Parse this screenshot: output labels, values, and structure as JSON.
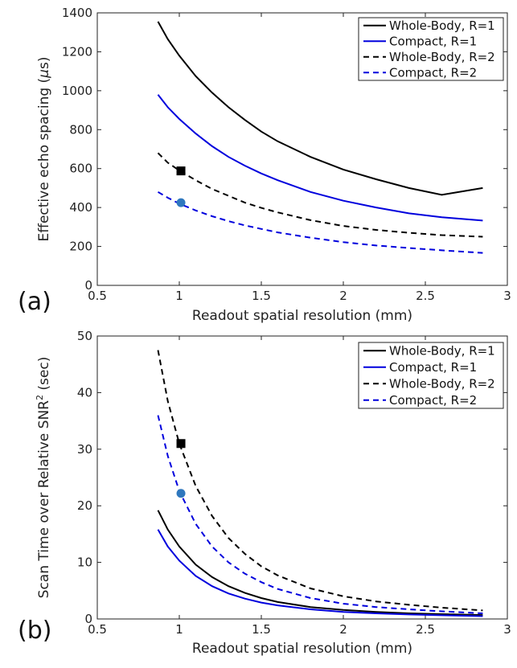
{
  "chart_data": [
    {
      "type": "line",
      "panel_label": "(a)",
      "xlabel": "Readout spatial resolution (mm)",
      "ylabel_prefix": "Effective echo spacing (",
      "ylabel_mu": "μ",
      "ylabel_suffix": "s)",
      "xlim": [
        0.5,
        3
      ],
      "ylim": [
        0,
        1400
      ],
      "xticks": [
        0.5,
        1,
        1.5,
        2,
        2.5,
        3
      ],
      "xtick_labels": [
        "0.5",
        "1",
        "1.5",
        "2",
        "2.5",
        "3"
      ],
      "yticks": [
        0,
        200,
        400,
        600,
        800,
        1000,
        1200,
        1400
      ],
      "ytick_labels": [
        "0",
        "200",
        "400",
        "600",
        "800",
        "1000",
        "1200",
        "1400"
      ],
      "legend_position": "top-right",
      "series": [
        {
          "name": "Whole-Body, R=1",
          "color": "#000000",
          "dash": "solid",
          "x": [
            0.87,
            0.93,
            1.0,
            1.1,
            1.2,
            1.3,
            1.4,
            1.5,
            1.6,
            1.8,
            2.0,
            2.2,
            2.4,
            2.6,
            2.85
          ],
          "y": [
            1355,
            1265,
            1180,
            1075,
            990,
            915,
            850,
            790,
            740,
            660,
            595,
            545,
            500,
            465,
            500
          ]
        },
        {
          "name": "Compact, R=1",
          "color": "#0000dd",
          "dash": "solid",
          "x": [
            0.87,
            0.93,
            1.0,
            1.1,
            1.2,
            1.3,
            1.4,
            1.5,
            1.6,
            1.8,
            2.0,
            2.2,
            2.4,
            2.6,
            2.85
          ],
          "y": [
            980,
            915,
            855,
            780,
            715,
            660,
            615,
            575,
            540,
            480,
            435,
            400,
            370,
            350,
            333
          ]
        },
        {
          "name": "Whole-Body, R=2",
          "color": "#000000",
          "dash": "dashed",
          "x": [
            0.87,
            0.93,
            1.0,
            1.1,
            1.2,
            1.3,
            1.4,
            1.5,
            1.6,
            1.8,
            2.0,
            2.2,
            2.4,
            2.6,
            2.85
          ],
          "y": [
            680,
            630,
            590,
            540,
            495,
            460,
            425,
            398,
            375,
            335,
            305,
            285,
            270,
            258,
            250
          ]
        },
        {
          "name": "Compact, R=2",
          "color": "#0000dd",
          "dash": "dashed",
          "x": [
            0.87,
            0.93,
            1.0,
            1.1,
            1.2,
            1.3,
            1.4,
            1.5,
            1.6,
            1.8,
            2.0,
            2.2,
            2.4,
            2.6,
            2.85
          ],
          "y": [
            480,
            450,
            420,
            385,
            355,
            330,
            308,
            290,
            272,
            245,
            222,
            205,
            192,
            180,
            167
          ]
        }
      ],
      "markers": [
        {
          "shape": "square",
          "x": 1.01,
          "y": 588,
          "color": "#000000"
        },
        {
          "shape": "circle",
          "x": 1.01,
          "y": 425,
          "color": "#2f78be"
        }
      ]
    },
    {
      "type": "line",
      "panel_label": "(b)",
      "xlabel": "Readout spatial resolution (mm)",
      "ylabel_prefix": "Scan Time over Relative SNR",
      "ylabel_sup": "2",
      "ylabel_suffix": " (sec)",
      "xlim": [
        0.5,
        3
      ],
      "ylim": [
        0,
        50
      ],
      "xticks": [
        0.5,
        1,
        1.5,
        2,
        2.5,
        3
      ],
      "xtick_labels": [
        "0.5",
        "1",
        "1.5",
        "2",
        "2.5",
        "3"
      ],
      "yticks": [
        0,
        10,
        20,
        30,
        40,
        50
      ],
      "ytick_labels": [
        "0",
        "10",
        "20",
        "30",
        "40",
        "50"
      ],
      "legend_position": "top-right",
      "series": [
        {
          "name": "Whole-Body, R=1",
          "color": "#000000",
          "dash": "solid",
          "x": [
            0.87,
            0.93,
            1.0,
            1.1,
            1.2,
            1.3,
            1.4,
            1.5,
            1.6,
            1.8,
            2.0,
            2.2,
            2.4,
            2.6,
            2.85
          ],
          "y": [
            19.2,
            15.8,
            12.8,
            9.6,
            7.4,
            5.8,
            4.6,
            3.7,
            3.0,
            2.1,
            1.6,
            1.25,
            1.0,
            0.85,
            0.7
          ]
        },
        {
          "name": "Compact, R=1",
          "color": "#0000dd",
          "dash": "solid",
          "x": [
            0.87,
            0.93,
            1.0,
            1.1,
            1.2,
            1.3,
            1.4,
            1.5,
            1.6,
            1.8,
            2.0,
            2.2,
            2.4,
            2.6,
            2.85
          ],
          "y": [
            15.8,
            12.8,
            10.3,
            7.6,
            5.8,
            4.5,
            3.6,
            2.9,
            2.4,
            1.7,
            1.25,
            1.0,
            0.8,
            0.65,
            0.5
          ]
        },
        {
          "name": "Whole-Body, R=2",
          "color": "#000000",
          "dash": "dashed",
          "x": [
            0.87,
            0.93,
            1.0,
            1.1,
            1.2,
            1.3,
            1.4,
            1.5,
            1.6,
            1.8,
            2.0,
            2.2,
            2.4,
            2.6,
            2.85
          ],
          "y": [
            47.5,
            38.5,
            31.0,
            23.5,
            18.2,
            14.3,
            11.5,
            9.3,
            7.7,
            5.4,
            4.0,
            3.1,
            2.5,
            2.0,
            1.5
          ]
        },
        {
          "name": "Compact, R=2",
          "color": "#0000dd",
          "dash": "dashed",
          "x": [
            0.87,
            0.93,
            1.0,
            1.1,
            1.2,
            1.3,
            1.4,
            1.5,
            1.6,
            1.8,
            2.0,
            2.2,
            2.4,
            2.6,
            2.85
          ],
          "y": [
            36.0,
            28.8,
            22.6,
            16.8,
            12.8,
            10.0,
            8.0,
            6.5,
            5.3,
            3.7,
            2.7,
            2.1,
            1.7,
            1.35,
            1.0
          ]
        }
      ],
      "markers": [
        {
          "shape": "square",
          "x": 1.01,
          "y": 31.0,
          "color": "#000000"
        },
        {
          "shape": "circle",
          "x": 1.01,
          "y": 22.2,
          "color": "#2f78be"
        }
      ]
    }
  ]
}
